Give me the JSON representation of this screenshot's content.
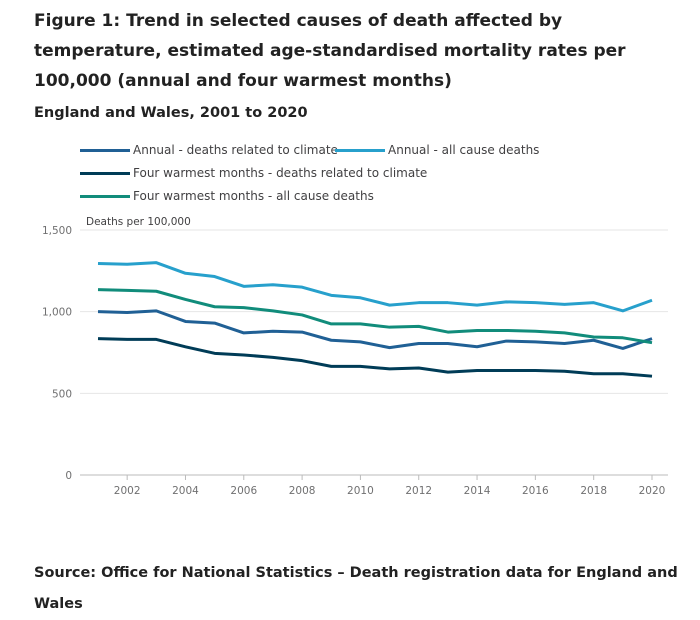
{
  "title": "Figure 1: Trend in selected causes of death affected by temperature, estimated age-standardised mortality rates per 100,000 (annual and four warmest months)",
  "subtitle": "England and Wales, 2001 to 2020",
  "source": "Source: Office for National Statistics – Death registration data for England and Wales",
  "chart_data": {
    "type": "line",
    "ylabel": "Deaths per 100,000",
    "ylim": [
      0,
      1500
    ],
    "yticks": [
      "0",
      "500",
      "1,000",
      "1,500"
    ],
    "ytick_values": [
      0,
      500,
      1000,
      1500
    ],
    "xticks": [
      "2002",
      "2004",
      "2006",
      "2008",
      "2010",
      "2012",
      "2014",
      "2016",
      "2018",
      "2020"
    ],
    "x": [
      2001,
      2002,
      2003,
      2004,
      2005,
      2006,
      2007,
      2008,
      2009,
      2010,
      2011,
      2012,
      2013,
      2014,
      2015,
      2016,
      2017,
      2018,
      2019,
      2020
    ],
    "grid": "horizontal",
    "legend_position": "top",
    "series": [
      {
        "name": "Annual - deaths related to climate",
        "color": "#206095",
        "values": [
          1000,
          995,
          1005,
          940,
          930,
          870,
          880,
          875,
          825,
          815,
          780,
          805,
          805,
          785,
          820,
          815,
          805,
          825,
          775,
          835
        ]
      },
      {
        "name": "Annual - all cause deaths",
        "color": "#27a0cc",
        "values": [
          1295,
          1290,
          1300,
          1235,
          1215,
          1155,
          1165,
          1150,
          1100,
          1085,
          1040,
          1055,
          1055,
          1040,
          1060,
          1055,
          1045,
          1055,
          1005,
          1070
        ]
      },
      {
        "name": "Four warmest months - deaths related to climate",
        "color": "#003c57",
        "values": [
          835,
          830,
          830,
          785,
          745,
          735,
          720,
          700,
          665,
          665,
          650,
          655,
          630,
          640,
          640,
          640,
          635,
          620,
          620,
          605
        ]
      },
      {
        "name": "Four warmest months - all cause deaths",
        "color": "#118c7b",
        "values": [
          1135,
          1130,
          1125,
          1075,
          1030,
          1025,
          1005,
          980,
          925,
          925,
          905,
          910,
          875,
          885,
          885,
          880,
          870,
          845,
          840,
          810
        ]
      }
    ]
  }
}
